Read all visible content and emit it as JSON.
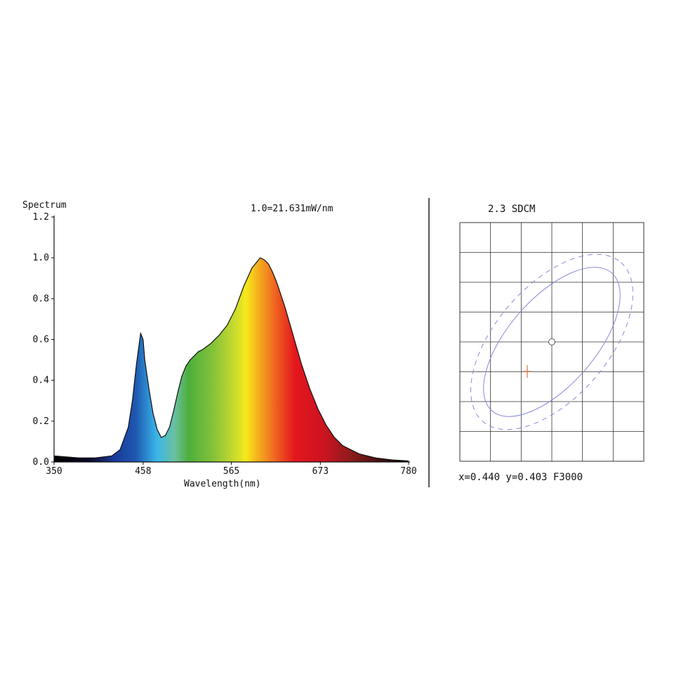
{
  "chart_data": [
    {
      "type": "area",
      "ylabel": "Spectrum",
      "annotation": "1.0=21.631mW/nm",
      "xlabel": "Wavelength(nm)",
      "xlim": [
        350,
        780
      ],
      "ylim": [
        0,
        1.2
      ],
      "xticks": [
        "350",
        "458",
        "565",
        "673",
        "780"
      ],
      "yticks": [
        "0.0",
        "0.2",
        "0.4",
        "0.6",
        "0.8",
        "1.0",
        "1.2"
      ],
      "fill": "visible-spectrum color gradient",
      "x": [
        350,
        380,
        400,
        420,
        430,
        440,
        445,
        450,
        455,
        458,
        460,
        465,
        470,
        475,
        480,
        485,
        490,
        495,
        500,
        505,
        510,
        515,
        520,
        525,
        530,
        540,
        550,
        560,
        570,
        580,
        590,
        600,
        605,
        610,
        615,
        620,
        630,
        640,
        650,
        660,
        670,
        680,
        690,
        700,
        720,
        740,
        760,
        780
      ],
      "y": [
        0.03,
        0.02,
        0.02,
        0.03,
        0.06,
        0.17,
        0.3,
        0.48,
        0.63,
        0.6,
        0.5,
        0.36,
        0.24,
        0.16,
        0.12,
        0.13,
        0.17,
        0.25,
        0.34,
        0.42,
        0.47,
        0.5,
        0.52,
        0.54,
        0.55,
        0.58,
        0.62,
        0.67,
        0.75,
        0.86,
        0.95,
        1.0,
        0.99,
        0.97,
        0.93,
        0.88,
        0.76,
        0.62,
        0.48,
        0.36,
        0.26,
        0.18,
        0.12,
        0.08,
        0.04,
        0.02,
        0.01,
        0.005
      ]
    },
    {
      "type": "scatter",
      "title": "2.3 SDCM",
      "grid": true,
      "grid_cells": [
        6,
        8
      ],
      "ellipses": [
        "solid",
        "dashed"
      ],
      "target_marker": "circle",
      "measured_marker": "cross",
      "readout": "x=0.440 y=0.403 F3000"
    }
  ],
  "colors": {
    "axis": "#111111",
    "grid": "#333333",
    "ellipse": "#8888dd",
    "measured_marker": "#e07050",
    "divider": "#222222"
  }
}
